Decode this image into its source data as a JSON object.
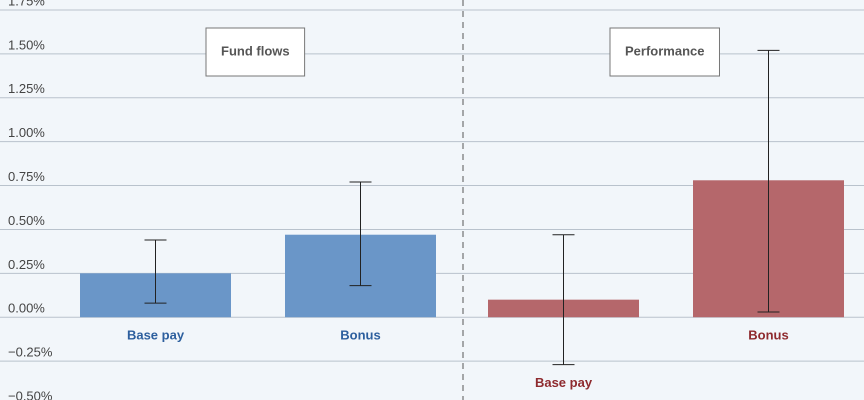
{
  "chart_data": {
    "type": "bar",
    "ylim": [
      -0.5,
      1.75
    ],
    "yticks": [
      {
        "value": -0.5,
        "label": "−0.50%"
      },
      {
        "value": -0.25,
        "label": "−0.25%"
      },
      {
        "value": 0,
        "label": "0.00%"
      },
      {
        "value": 0.25,
        "label": "0.25%"
      },
      {
        "value": 0.5,
        "label": "0.50%"
      },
      {
        "value": 0.75,
        "label": "0.75%"
      },
      {
        "value": 1,
        "label": "1.00%"
      },
      {
        "value": 1.25,
        "label": "1.25%"
      },
      {
        "value": 1.5,
        "label": "1.50%"
      },
      {
        "value": 1.75,
        "label": "1.75%"
      }
    ],
    "grid": true,
    "panels": [
      {
        "title": "Fund flows",
        "color": "#6a96c8",
        "label_color": "#2d5f9e",
        "categories": [
          "Base pay",
          "Bonus"
        ],
        "values": [
          0.25,
          0.47
        ],
        "ci_low": [
          0.08,
          0.18
        ],
        "ci_high": [
          0.44,
          0.77
        ]
      },
      {
        "title": "Performance",
        "color": "#b5676b",
        "label_color": "#8e2a2e",
        "categories": [
          "Base pay",
          "Bonus"
        ],
        "values": [
          0.1,
          0.78
        ],
        "ci_low": [
          -0.27,
          0.03
        ],
        "ci_high": [
          0.47,
          1.52
        ]
      }
    ]
  }
}
